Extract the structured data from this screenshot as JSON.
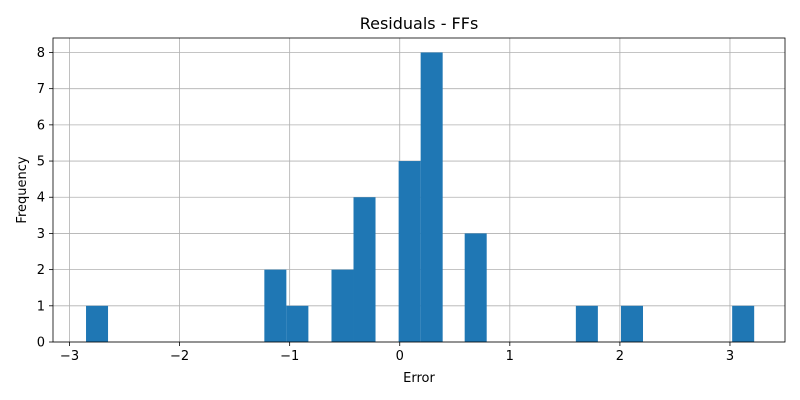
{
  "chart_data": {
    "type": "bar",
    "title": "Residuals - FFs",
    "xlabel": "Error",
    "ylabel": "Frequency",
    "xlim": [
      -3.15,
      3.5
    ],
    "ylim": [
      0,
      8.4
    ],
    "grid": true,
    "bar_color": "#1f77b4",
    "x_ticks": [
      {
        "value": -3,
        "label": "−3"
      },
      {
        "value": -2,
        "label": "−2"
      },
      {
        "value": -1,
        "label": "−1"
      },
      {
        "value": 0,
        "label": "0"
      },
      {
        "value": 1,
        "label": "1"
      },
      {
        "value": 2,
        "label": "2"
      },
      {
        "value": 3,
        "label": "3"
      }
    ],
    "y_ticks": [
      {
        "value": 0,
        "label": "0"
      },
      {
        "value": 1,
        "label": "1"
      },
      {
        "value": 2,
        "label": "2"
      },
      {
        "value": 3,
        "label": "3"
      },
      {
        "value": 4,
        "label": "4"
      },
      {
        "value": 5,
        "label": "5"
      },
      {
        "value": 6,
        "label": "6"
      },
      {
        "value": 7,
        "label": "7"
      },
      {
        "value": 8,
        "label": "8"
      }
    ],
    "bins": [
      {
        "start": -2.85,
        "end": -2.65,
        "count": 1
      },
      {
        "start": -1.23,
        "end": -1.03,
        "count": 2
      },
      {
        "start": -1.03,
        "end": -0.83,
        "count": 1
      },
      {
        "start": -0.62,
        "end": -0.42,
        "count": 2
      },
      {
        "start": -0.42,
        "end": -0.22,
        "count": 4
      },
      {
        "start": -0.01,
        "end": 0.19,
        "count": 5
      },
      {
        "start": 0.19,
        "end": 0.39,
        "count": 8
      },
      {
        "start": 0.59,
        "end": 0.79,
        "count": 3
      },
      {
        "start": 1.6,
        "end": 1.8,
        "count": 1
      },
      {
        "start": 2.01,
        "end": 2.21,
        "count": 1
      },
      {
        "start": 3.02,
        "end": 3.22,
        "count": 1
      }
    ]
  }
}
